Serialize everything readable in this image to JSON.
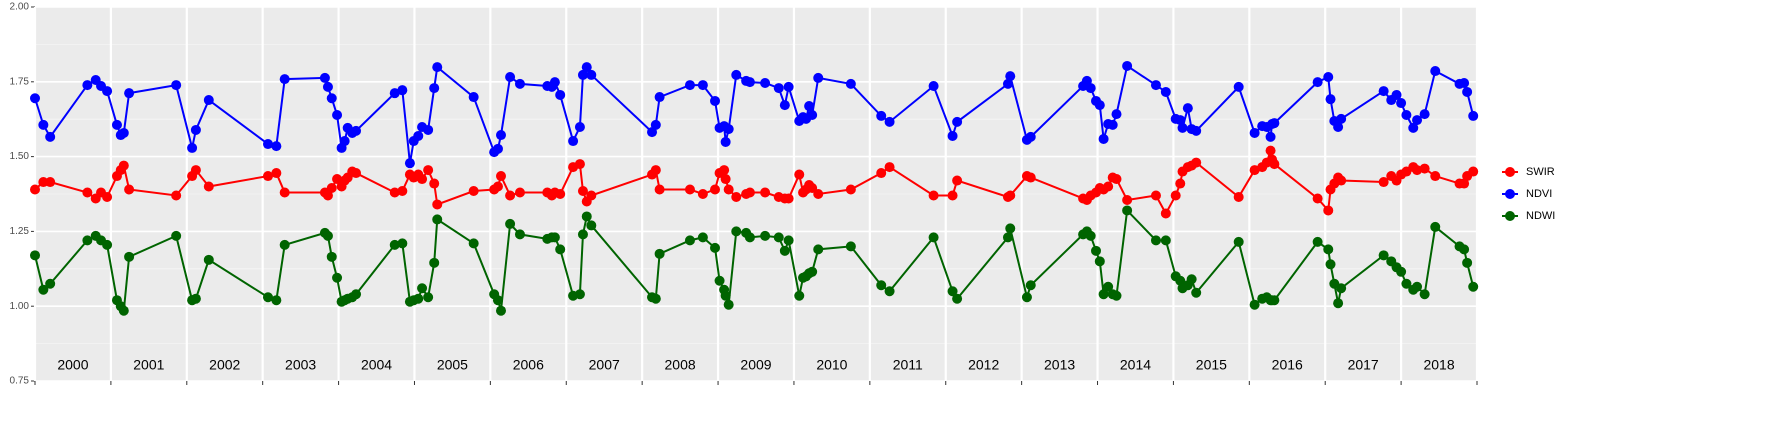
{
  "chart_data": {
    "type": "line",
    "x": [
      2000.0,
      2000.11,
      2000.2,
      2000.69,
      2000.8,
      2000.87,
      2000.95,
      2001.08,
      2001.13,
      2001.17,
      2001.24,
      2001.86,
      2002.07,
      2002.12,
      2002.29,
      2003.07,
      2003.18,
      2003.29,
      2003.82,
      2003.86,
      2003.91,
      2003.98,
      2004.04,
      2004.08,
      2004.12,
      2004.18,
      2004.23,
      2004.74,
      2004.84,
      2004.94,
      2004.99,
      2005.05,
      2005.1,
      2005.18,
      2005.26,
      2005.3,
      2005.78,
      2006.05,
      2006.1,
      2006.14,
      2006.26,
      2006.39,
      2006.75,
      2006.81,
      2006.85,
      2006.92,
      2007.09,
      2007.18,
      2007.22,
      2007.27,
      2007.33,
      2008.13,
      2008.18,
      2008.23,
      2008.63,
      2008.8,
      2008.96,
      2009.02,
      2009.08,
      2009.1,
      2009.14,
      2009.24,
      2009.37,
      2009.42,
      2009.62,
      2009.8,
      2009.88,
      2009.93,
      2010.07,
      2010.12,
      2010.16,
      2010.2,
      2010.24,
      2010.32,
      2010.75,
      2011.15,
      2011.26,
      2011.84,
      2012.09,
      2012.15,
      2012.82,
      2012.85,
      2013.07,
      2013.12,
      2013.81,
      2013.86,
      2013.91,
      2013.98,
      2014.03,
      2014.08,
      2014.14,
      2014.2,
      2014.25,
      2014.39,
      2014.77,
      2014.9,
      2015.03,
      2015.09,
      2015.12,
      2015.19,
      2015.24,
      2015.3,
      2015.86,
      2016.07,
      2016.17,
      2016.23,
      2016.28,
      2016.3,
      2016.33,
      2016.9,
      2017.04,
      2017.07,
      2017.12,
      2017.17,
      2017.21,
      2017.77,
      2017.87,
      2017.94,
      2018.0,
      2018.07,
      2018.16,
      2018.21,
      2018.31,
      2018.45,
      2018.77,
      2018.83,
      2018.87,
      2018.95
    ],
    "series": [
      {
        "name": "SWIR",
        "color": "#ff0000",
        "values": [
          1.39,
          1.415,
          1.415,
          1.38,
          1.36,
          1.38,
          1.365,
          1.435,
          1.455,
          1.47,
          1.39,
          1.37,
          1.435,
          1.455,
          1.4,
          1.435,
          1.445,
          1.38,
          1.38,
          1.37,
          1.395,
          1.425,
          1.4,
          1.42,
          1.43,
          1.45,
          1.445,
          1.38,
          1.385,
          1.44,
          1.43,
          1.44,
          1.425,
          1.455,
          1.41,
          1.34,
          1.385,
          1.39,
          1.4,
          1.435,
          1.37,
          1.38,
          1.38,
          1.37,
          1.38,
          1.375,
          1.465,
          1.475,
          1.385,
          1.35,
          1.37,
          1.44,
          1.455,
          1.39,
          1.39,
          1.375,
          1.39,
          1.445,
          1.455,
          1.425,
          1.39,
          1.365,
          1.375,
          1.38,
          1.38,
          1.365,
          1.36,
          1.36,
          1.44,
          1.38,
          1.39,
          1.405,
          1.395,
          1.375,
          1.39,
          1.445,
          1.465,
          1.37,
          1.37,
          1.42,
          1.365,
          1.37,
          1.435,
          1.43,
          1.36,
          1.355,
          1.37,
          1.38,
          1.395,
          1.39,
          1.4,
          1.43,
          1.425,
          1.355,
          1.37,
          1.31,
          1.37,
          1.41,
          1.45,
          1.465,
          1.47,
          1.48,
          1.365,
          1.455,
          1.465,
          1.48,
          1.52,
          1.49,
          1.475,
          1.36,
          1.32,
          1.39,
          1.41,
          1.43,
          1.42,
          1.415,
          1.435,
          1.42,
          1.44,
          1.45,
          1.465,
          1.455,
          1.46,
          1.435,
          1.41,
          1.41,
          1.435,
          1.45
        ]
      },
      {
        "name": "NDVI",
        "color": "#0000ff",
        "values": [
          1.695,
          1.606,
          1.566,
          1.739,
          1.756,
          1.736,
          1.719,
          1.606,
          1.572,
          1.579,
          1.712,
          1.739,
          1.529,
          1.589,
          1.689,
          1.542,
          1.535,
          1.759,
          1.763,
          1.733,
          1.695,
          1.639,
          1.529,
          1.552,
          1.596,
          1.579,
          1.586,
          1.712,
          1.722,
          1.478,
          1.552,
          1.569,
          1.599,
          1.589,
          1.729,
          1.799,
          1.699,
          1.515,
          1.526,
          1.572,
          1.766,
          1.743,
          1.736,
          1.733,
          1.749,
          1.706,
          1.552,
          1.599,
          1.773,
          1.799,
          1.773,
          1.582,
          1.606,
          1.699,
          1.739,
          1.739,
          1.686,
          1.596,
          1.602,
          1.549,
          1.592,
          1.773,
          1.753,
          1.749,
          1.746,
          1.729,
          1.672,
          1.733,
          1.619,
          1.632,
          1.626,
          1.669,
          1.639,
          1.763,
          1.743,
          1.636,
          1.616,
          1.736,
          1.569,
          1.616,
          1.743,
          1.769,
          1.556,
          1.566,
          1.736,
          1.753,
          1.729,
          1.686,
          1.672,
          1.559,
          1.609,
          1.606,
          1.642,
          1.803,
          1.739,
          1.716,
          1.626,
          1.622,
          1.596,
          1.662,
          1.592,
          1.586,
          1.733,
          1.579,
          1.602,
          1.599,
          1.566,
          1.609,
          1.612,
          1.749,
          1.766,
          1.692,
          1.619,
          1.599,
          1.626,
          1.719,
          1.689,
          1.706,
          1.679,
          1.639,
          1.596,
          1.622,
          1.642,
          1.786,
          1.743,
          1.746,
          1.716,
          1.636
        ]
      },
      {
        "name": "NDWI",
        "color": "#006400",
        "values": [
          1.17,
          1.055,
          1.075,
          1.22,
          1.235,
          1.22,
          1.205,
          1.02,
          1.0,
          0.985,
          1.165,
          1.235,
          1.02,
          1.025,
          1.155,
          1.03,
          1.02,
          1.205,
          1.245,
          1.235,
          1.165,
          1.095,
          1.015,
          1.02,
          1.025,
          1.03,
          1.04,
          1.205,
          1.21,
          1.015,
          1.02,
          1.025,
          1.06,
          1.03,
          1.145,
          1.29,
          1.21,
          1.04,
          1.02,
          0.985,
          1.275,
          1.24,
          1.225,
          1.23,
          1.23,
          1.19,
          1.035,
          1.04,
          1.24,
          1.3,
          1.27,
          1.03,
          1.025,
          1.175,
          1.22,
          1.23,
          1.195,
          1.085,
          1.055,
          1.035,
          1.005,
          1.25,
          1.245,
          1.23,
          1.235,
          1.23,
          1.185,
          1.22,
          1.035,
          1.095,
          1.1,
          1.11,
          1.115,
          1.19,
          1.2,
          1.07,
          1.05,
          1.23,
          1.05,
          1.025,
          1.23,
          1.26,
          1.03,
          1.07,
          1.24,
          1.25,
          1.235,
          1.185,
          1.15,
          1.04,
          1.065,
          1.04,
          1.035,
          1.32,
          1.22,
          1.22,
          1.1,
          1.085,
          1.06,
          1.07,
          1.09,
          1.045,
          1.215,
          1.005,
          1.025,
          1.03,
          1.02,
          1.02,
          1.02,
          1.215,
          1.19,
          1.14,
          1.075,
          1.01,
          1.06,
          1.17,
          1.15,
          1.13,
          1.115,
          1.075,
          1.055,
          1.065,
          1.04,
          1.265,
          1.2,
          1.19,
          1.145,
          1.065
        ]
      }
    ],
    "xlim": [
      2000,
      2019
    ],
    "xticks": [
      2000,
      2001,
      2002,
      2003,
      2004,
      2005,
      2006,
      2007,
      2008,
      2009,
      2010,
      2011,
      2012,
      2013,
      2014,
      2015,
      2016,
      2017,
      2018,
      2019
    ],
    "year_labels": [
      {
        "value": 2000.5,
        "label": "2000"
      },
      {
        "value": 2001.5,
        "label": "2001"
      },
      {
        "value": 2002.5,
        "label": "2002"
      },
      {
        "value": 2003.5,
        "label": "2003"
      },
      {
        "value": 2004.5,
        "label": "2004"
      },
      {
        "value": 2005.5,
        "label": "2005"
      },
      {
        "value": 2006.5,
        "label": "2006"
      },
      {
        "value": 2007.5,
        "label": "2007"
      },
      {
        "value": 2008.5,
        "label": "2008"
      },
      {
        "value": 2009.5,
        "label": "2009"
      },
      {
        "value": 2010.5,
        "label": "2010"
      },
      {
        "value": 2011.5,
        "label": "2011"
      },
      {
        "value": 2012.5,
        "label": "2012"
      },
      {
        "value": 2013.5,
        "label": "2013"
      },
      {
        "value": 2014.5,
        "label": "2014"
      },
      {
        "value": 2015.5,
        "label": "2015"
      },
      {
        "value": 2016.5,
        "label": "2016"
      },
      {
        "value": 2017.5,
        "label": "2017"
      },
      {
        "value": 2018.5,
        "label": "2018"
      }
    ],
    "ylim": [
      0.75,
      2.0
    ],
    "yticks": [
      {
        "value": 0.75,
        "label": "0.75"
      },
      {
        "value": 1.0,
        "label": "1.00"
      },
      {
        "value": 1.25,
        "label": "1.25"
      },
      {
        "value": 1.5,
        "label": "1.50"
      },
      {
        "value": 1.75,
        "label": "1.75"
      },
      {
        "value": 2.0,
        "label": "2.00"
      }
    ],
    "grid": true,
    "legend": "right"
  }
}
